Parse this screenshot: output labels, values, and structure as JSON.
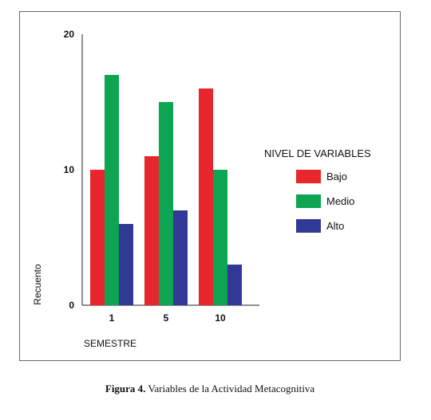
{
  "chart_data": {
    "type": "bar",
    "categories": [
      "1",
      "5",
      "10"
    ],
    "series": [
      {
        "name": "Bajo",
        "values": [
          10,
          11,
          16
        ],
        "color": "#e8262d"
      },
      {
        "name": "Medio",
        "values": [
          17,
          15,
          10
        ],
        "color": "#0ea552"
      },
      {
        "name": "Alto",
        "values": [
          6,
          7,
          3
        ],
        "color": "#303a96"
      }
    ],
    "ylim": [
      0,
      20
    ],
    "yticks": [
      "0",
      "10",
      "20"
    ],
    "xlabel": "SEMESTRE",
    "ylabel": "Recuento",
    "legend_title": "NIVEL DE VARIABLES",
    "legend_position": "right",
    "grid": false
  },
  "caption": {
    "label": "Figura 4.",
    "text": "Variables de la Actividad Metacognitiva"
  }
}
